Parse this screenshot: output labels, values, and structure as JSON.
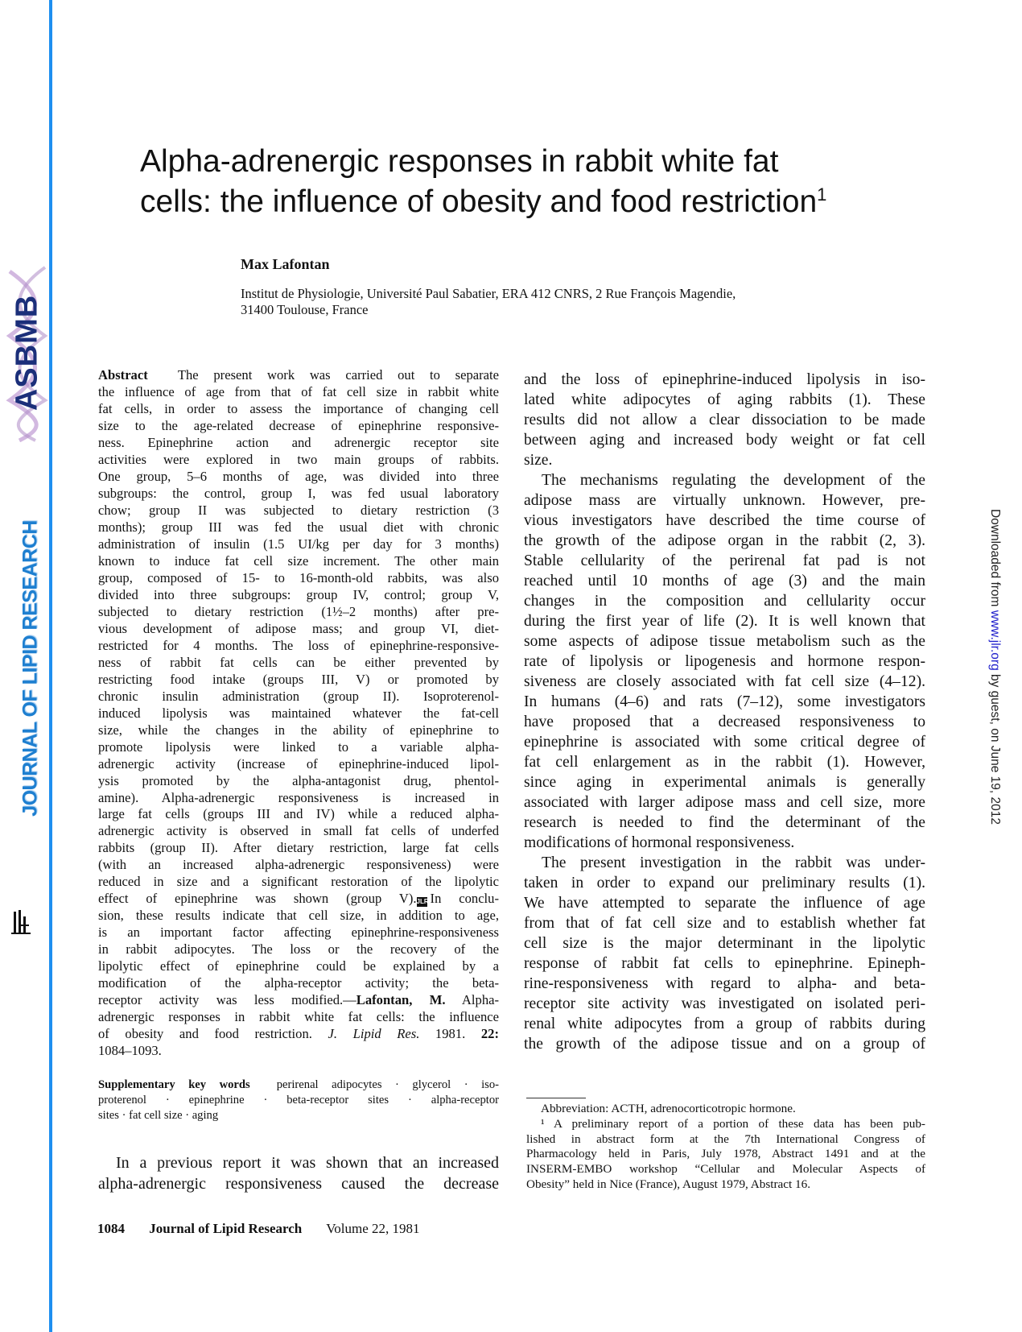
{
  "sidebar": {
    "asbmb_logo": "ASBMB",
    "journal_name": "JOURNAL OF LIPID RESEARCH",
    "jlr_logo": "JLR"
  },
  "download_note": {
    "prefix": "Downloaded from ",
    "link": "www.jlr.org",
    "suffix": " by guest, on June 19, 2012",
    "link_color": "#2222cc"
  },
  "colors": {
    "side_bar": "#1e8ff0",
    "asbmb": "#1b2f7a",
    "journal_name": "#1e7fd0"
  },
  "header": {
    "title_line1": "Alpha-adrenergic responses in rabbit white fat",
    "title_line2": "cells: the influence of obesity and food restriction",
    "title_footnote_mark": "1",
    "author": "Max Lafontan",
    "affiliation_line1": "Institut de Physiologie, Université Paul Sabatier, ERA 412 CNRS, 2 Rue François Magendie,",
    "affiliation_line2": "31400 Toulouse, France"
  },
  "abstract": {
    "paragraphs": [
      [
        [
          {
            "t": "Abstract",
            "s": "b"
          },
          {
            "t": "  The present work was carried out to separate"
          }
        ],
        "the influence of age from that of fat cell size in rabbit white",
        "fat cells, in order to assess the importance of changing cell",
        "size to the age-related decrease of epinephrine responsive-",
        "ness. Epinephrine action and adrenergic receptor site",
        "activities were explored in two main groups of rabbits.",
        "One group, 5–6 months of age, was divided into three",
        "subgroups: the control, group I, was fed usual laboratory",
        "chow; group II was subjected to dietary restriction (3",
        "months); group III was fed the usual diet with chronic",
        "administration of insulin (1.5 UI/kg per day for 3 months)",
        "known to induce fat cell size increment. The other main",
        "group, composed of 15- to 16-month-old rabbits, was also",
        "divided into three subgroups: group IV, control; group V,",
        "subjected to dietary restriction (1½–2 months) after pre-",
        "vious development of adipose mass; and group VI, diet-",
        "restricted for 4 months. The loss of epinephrine-responsive-",
        "ness of rabbit fat cells can be either prevented by",
        "restricting food intake (groups III, V) or promoted by",
        "chronic insulin administration (group II). Isoproterenol-",
        "induced lipolysis was maintained whatever the fat-cell",
        "size, while the changes in the ability of epinephrine to",
        "promote lipolysis were linked to a variable alpha-",
        "adrenergic activity (increase of epinephrine-induced lipol-",
        "ysis promoted by the alpha-antagonist drug, phentol-",
        "amine). Alpha-adrenergic responsiveness is increased in",
        "large fat cells (groups III and IV) while a reduced alpha-",
        "adrenergic activity is observed in small fat cells of underfed",
        "rabbits (group II). After dietary restriction, large fat cells",
        "(with an increased alpha-adrenergic responsiveness) were",
        "reduced in size and a significant restoration of the lipolytic",
        [
          {
            "t": "effect of epinephrine was shown (group V)."
          },
          {
            "t": "JLR",
            "s": "icon"
          },
          {
            "t": "In conclu-"
          }
        ],
        "sion, these results indicate that cell size, in addition to age,",
        "is an important factor affecting epinephrine-responsiveness",
        "in rabbit adipocytes. The loss or the recovery of the",
        "lipolytic effect of epinephrine could be explained by a",
        "modification of the alpha-receptor activity; the beta-",
        [
          {
            "t": "receptor activity was less modified.—"
          },
          {
            "t": "Lafontan, M.",
            "s": "b"
          },
          {
            "t": " Alpha-"
          }
        ],
        "adrenergic responses in rabbit white fat cells: the influence",
        [
          {
            "t": "of obesity and food restriction. "
          },
          {
            "t": "J. Lipid Res.",
            "s": "i"
          },
          {
            "t": " 1981. "
          },
          {
            "t": "22:",
            "s": "b"
          }
        ],
        "1084–1093."
      ]
    ]
  },
  "keywords": {
    "paragraphs": [
      [
        [
          {
            "t": "Supplementary key words",
            "s": "b"
          },
          {
            "t": "  perirenal adipocytes · glycerol · iso-"
          }
        ],
        "proterenol · epinephrine · beta-receptor sites · alpha-receptor",
        "sites · fat cell size · aging"
      ]
    ]
  },
  "intro": {
    "paragraphs": [
      [
        "In a previous report it was shown that an increased",
        "alpha-adrenergic responsiveness caused the decrease"
      ]
    ]
  },
  "right_column": {
    "paragraphs": [
      [
        "and the loss of epinephrine-induced lipolysis in iso-",
        "lated white adipocytes of aging rabbits (1). These",
        "results did not allow a clear dissociation to be made",
        "between aging and increased body weight or fat cell",
        "size."
      ],
      [
        "The mechanisms regulating the development of the",
        "adipose mass are virtually unknown. However, pre-",
        "vious investigators have described the time course of",
        "the growth of the adipose organ in the rabbit (2, 3).",
        "Stable cellularity of the perirenal fat pad is not",
        "reached until 10 months of age (3) and the main",
        "changes in the composition and cellularity occur",
        "during the first year of life (2). It is well known that",
        "some aspects of adipose tissue metabolism such as the",
        "rate of lipolysis or lipogenesis and hormone respon-",
        "siveness are closely associated with fat cell size (4–12).",
        "In humans (4–6) and rats (7–12), some investigators",
        "have proposed that a decreased responsiveness to",
        "epinephrine is associated with some critical degree of",
        "fat cell enlargement as in the rabbit (1). However,",
        "since aging in experimental animals is generally",
        "associated with larger adipose mass and cell size, more",
        "research is needed to find the determinant of the",
        "modifications of hormonal responsiveness."
      ],
      [
        "The present investigation in the rabbit was under-",
        "taken in order to expand our preliminary results (1).",
        "We have attempted to separate the influence of age",
        "from that of fat cell size and to establish whether fat",
        "cell size is the major determinant in the lipolytic",
        "response of rabbit fat cells to epinephrine. Epineph-",
        "rine-responsiveness with regard to alpha- and beta-",
        "receptor site activity was investigated on isolated peri-",
        "renal white adipocytes from a group of rabbits during",
        "the growth of the adipose tissue and on a group of"
      ]
    ]
  },
  "footnotes": {
    "paragraphs": [
      [
        "Abbreviation: ACTH, adrenocorticotropic hormone."
      ],
      [
        "¹ A preliminary report of a portion of these data has been pub-",
        "lished in abstract form at the 7th International Congress of",
        "Pharmacology held in Paris, July 1978, Abstract 1491 and at the",
        "INSERM-EMBO workshop “Cellular and Molecular Aspects of",
        "Obesity” held in Nice (France), August 1979, Abstract 16."
      ]
    ]
  },
  "footer": {
    "page_number": "1084",
    "journal": "Journal of Lipid Research",
    "volume": "Volume 22, 1981"
  }
}
